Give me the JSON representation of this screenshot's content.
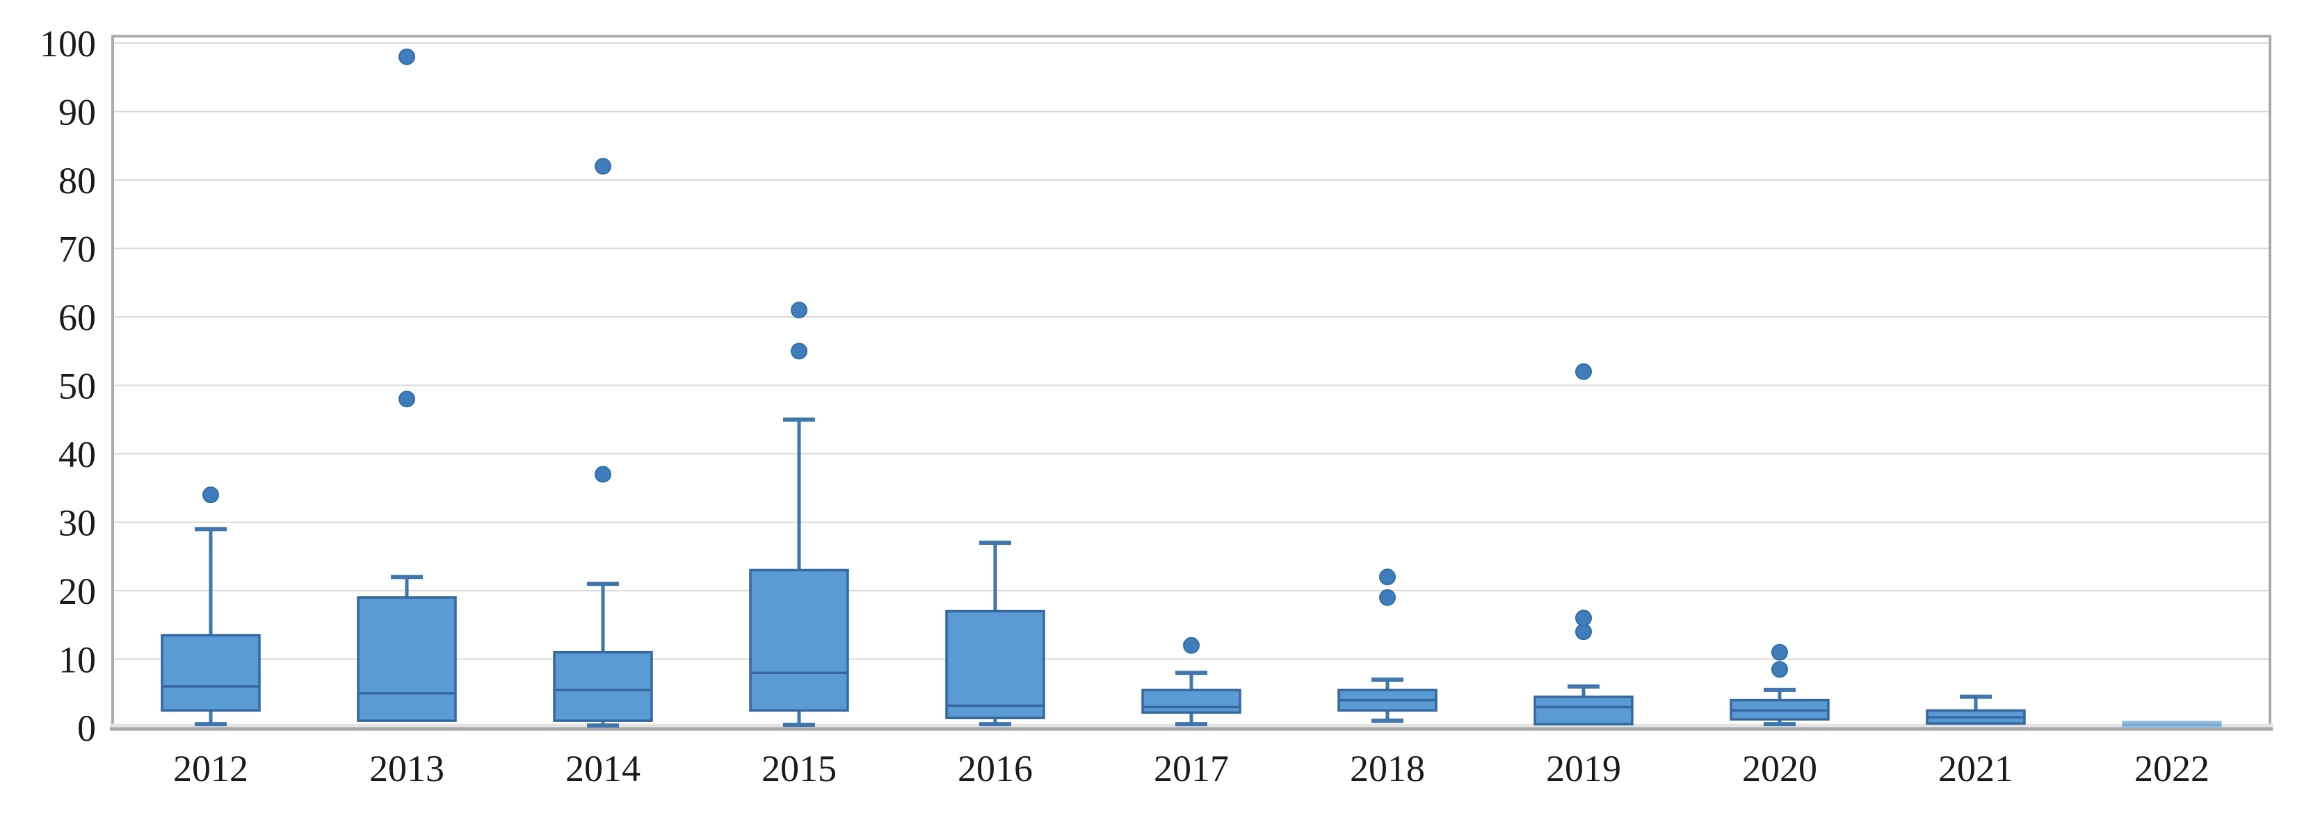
{
  "chart_data": {
    "type": "boxplot",
    "title": "",
    "xlabel": "",
    "ylabel": "",
    "categories": [
      "2012",
      "2013",
      "2014",
      "2015",
      "2016",
      "2017",
      "2018",
      "2019",
      "2020",
      "2021",
      "2022"
    ],
    "yticks": [
      0,
      10,
      20,
      30,
      40,
      50,
      60,
      70,
      80,
      90,
      100
    ],
    "ylim": [
      0,
      101
    ],
    "grid": true,
    "legend_position": "none",
    "series": [
      {
        "category": "2012",
        "whisker_low": 0.5,
        "q1": 2.5,
        "median": 6,
        "q3": 13.5,
        "whisker_high": 29,
        "outliers": [
          34
        ]
      },
      {
        "category": "2013",
        "whisker_low": null,
        "q1": 1,
        "median": 5,
        "q3": 19,
        "whisker_high": 22,
        "outliers": [
          48,
          98
        ]
      },
      {
        "category": "2014",
        "whisker_low": 0.3,
        "q1": 1,
        "median": 5.5,
        "q3": 11,
        "whisker_high": 21,
        "outliers": [
          37,
          82
        ]
      },
      {
        "category": "2015",
        "whisker_low": 0.4,
        "q1": 2.5,
        "median": 8,
        "q3": 23,
        "whisker_high": 45,
        "outliers": [
          55,
          61
        ]
      },
      {
        "category": "2016",
        "whisker_low": 0.5,
        "q1": 1.4,
        "median": 3.2,
        "q3": 17,
        "whisker_high": 27,
        "outliers": []
      },
      {
        "category": "2017",
        "whisker_low": 0.5,
        "q1": 2.2,
        "median": 3,
        "q3": 5.5,
        "whisker_high": 8,
        "outliers": [
          12
        ]
      },
      {
        "category": "2018",
        "whisker_low": 1,
        "q1": 2.5,
        "median": 4,
        "q3": 5.5,
        "whisker_high": 7,
        "outliers": [
          19,
          22
        ]
      },
      {
        "category": "2019",
        "whisker_low": null,
        "q1": 0.5,
        "median": 3,
        "q3": 4.5,
        "whisker_high": 6,
        "outliers": [
          14,
          16,
          52
        ]
      },
      {
        "category": "2020",
        "whisker_low": 0.5,
        "q1": 1.2,
        "median": 2.5,
        "q3": 4,
        "whisker_high": 5.5,
        "outliers": [
          8.5,
          11
        ]
      },
      {
        "category": "2021",
        "whisker_low": null,
        "q1": 0.6,
        "median": 1.5,
        "q3": 2.5,
        "whisker_high": 4.5,
        "outliers": []
      },
      {
        "category": "2022",
        "whisker_low": null,
        "q1": 0.1,
        "median": 0.4,
        "q3": 0.8,
        "whisker_high": null,
        "outliers": [],
        "muted": true
      }
    ],
    "colors": {
      "box_fill": "#5b9bd5",
      "box_stroke": "#35689f",
      "median_stroke": "#35689f",
      "whisker_stroke": "#3f76ad",
      "outlier_fill": "#3f7dbd",
      "outlier_stroke": "#2f6da4",
      "muted_box_fill": "#b3cfe8",
      "muted_box_stroke": "#93bade",
      "muted_median_stroke": "#74a9d8",
      "gridline": "#d9d9d9",
      "frame": "#ababab",
      "axis_bottom": "#a6a6a6",
      "axis_bottom_light": "#e4e4e4",
      "label_color": "#1a1a1a"
    }
  }
}
